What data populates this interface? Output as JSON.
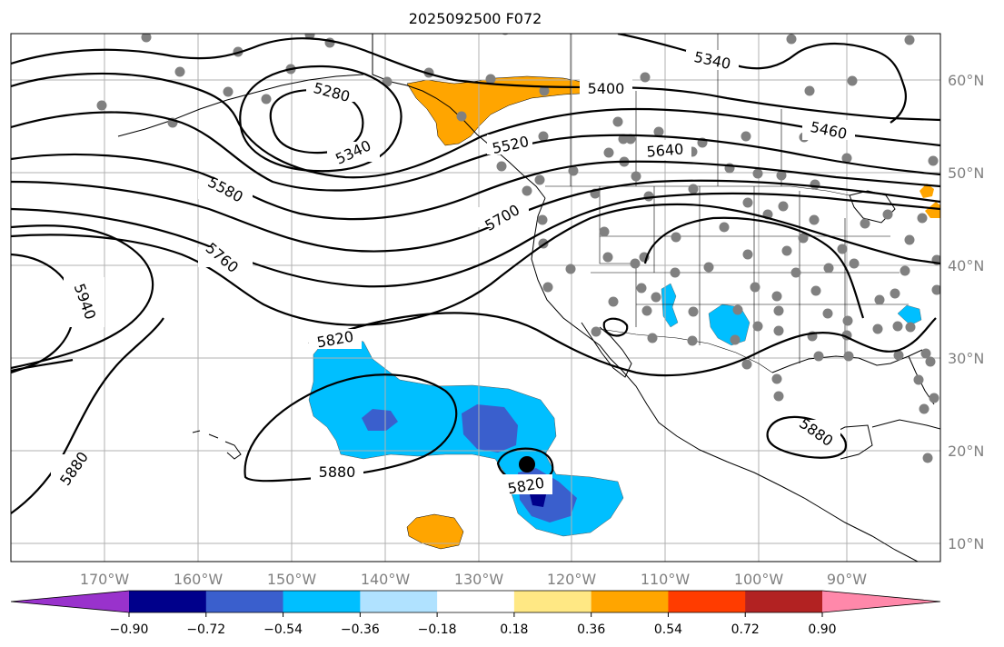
{
  "title": "2025092500 F072",
  "lon_labels": [
    "170°W",
    "160°W",
    "150°W",
    "140°W",
    "130°W",
    "120°W",
    "110°W",
    "100°W",
    "90°W"
  ],
  "lat_labels": [
    "60°N",
    "50°N",
    "40°N",
    "30°N",
    "20°N",
    "10°N"
  ],
  "contour_labels": [
    {
      "text": "5280"
    },
    {
      "text": "5340"
    },
    {
      "text": "5340"
    },
    {
      "text": "5400"
    },
    {
      "text": "5460"
    },
    {
      "text": "5520"
    },
    {
      "text": "5580"
    },
    {
      "text": "5640"
    },
    {
      "text": "5700"
    },
    {
      "text": "5760"
    },
    {
      "text": "5820"
    },
    {
      "text": "5820"
    },
    {
      "text": "5880"
    },
    {
      "text": "5880"
    },
    {
      "text": "5880"
    },
    {
      "text": "5940"
    }
  ],
  "colorbar": {
    "labels": [
      "−0.90",
      "−0.72",
      "−0.54",
      "−0.36",
      "−0.18",
      "0.18",
      "0.36",
      "0.54",
      "0.72",
      "0.90"
    ],
    "colors": [
      "#9932cc",
      "#00008b",
      "#3a5fcd",
      "#00bfff",
      "#b0e2ff",
      "#ffffff",
      "#ffe884",
      "#ffa500",
      "#ff3c00",
      "#b22222",
      "#ff88aa"
    ]
  },
  "colors": {
    "orange": "#ffa500",
    "light_blue": "#00bfff",
    "medium_blue": "#3a5fcd",
    "dark_blue": "#00008b",
    "station": "#808080",
    "contour": "#000000",
    "grid": "#b0b0b0"
  }
}
